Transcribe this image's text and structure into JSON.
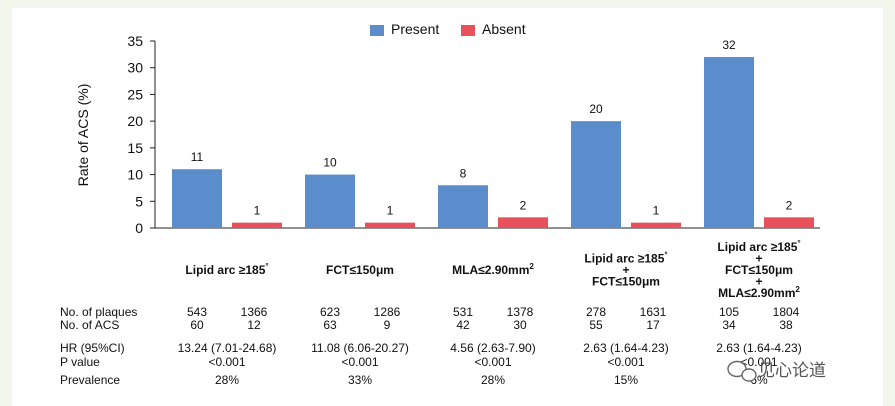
{
  "chart_data": {
    "type": "bar",
    "ylabel": "Rate of ACS (%)",
    "ylim": [
      0,
      35
    ],
    "yticks": [
      0,
      5,
      10,
      15,
      20,
      25,
      30,
      35
    ],
    "legend_position": "top-center",
    "colors": {
      "present": "#5b8ccc",
      "absent": "#e8505b"
    },
    "series": [
      {
        "name": "Present",
        "values": [
          11,
          10,
          8,
          20,
          32
        ]
      },
      {
        "name": "Absent",
        "values": [
          1,
          1,
          2,
          1,
          2
        ]
      }
    ],
    "categories": [
      {
        "lines": [
          {
            "t": "Lipid arc ≥185",
            "sup": "°"
          }
        ]
      },
      {
        "lines": [
          {
            "t": "FCT≤150μm",
            "sup": ""
          }
        ]
      },
      {
        "lines": [
          {
            "t": "MLA≤2.90mm",
            "sup": "2"
          }
        ]
      },
      {
        "lines": [
          {
            "t": "Lipid arc ≥185",
            "sup": "°"
          },
          {
            "t": "+",
            "sup": ""
          },
          {
            "t": "FCT≤150μm",
            "sup": ""
          }
        ]
      },
      {
        "lines": [
          {
            "t": "Lipid arc ≥185",
            "sup": "°"
          },
          {
            "t": "+",
            "sup": ""
          },
          {
            "t": "FCT≤150μm",
            "sup": ""
          },
          {
            "t": "+",
            "sup": ""
          },
          {
            "t": "MLA≤2.90mm",
            "sup": "2"
          }
        ]
      }
    ]
  },
  "table": {
    "rows": [
      {
        "label": "No. of plaques",
        "pairs": [
          [
            "543",
            "1366"
          ],
          [
            "623",
            "1286"
          ],
          [
            "531",
            "1378"
          ],
          [
            "278",
            "1631"
          ],
          [
            "105",
            "1804"
          ]
        ]
      },
      {
        "label": "No. of ACS",
        "pairs": [
          [
            "60",
            "12"
          ],
          [
            "63",
            "9"
          ],
          [
            "42",
            "30"
          ],
          [
            "55",
            "17"
          ],
          [
            "34",
            "38"
          ]
        ]
      },
      {
        "label": "HR (95%CI)",
        "singles": [
          "13.24 (7.01-24.68)",
          "11.08 (6.06-20.27)",
          "4.56 (2.63-7.90)",
          "2.63 (1.64-4.23)",
          "2.63 (1.64-4.23)"
        ]
      },
      {
        "label": "P value",
        "singles": [
          "<0.001",
          "<0.001",
          "<0.001",
          "<0.001",
          "<0.001"
        ]
      },
      {
        "label": "Prevalence",
        "singles": [
          "28%",
          "33%",
          "28%",
          "15%",
          "6%"
        ]
      }
    ]
  },
  "watermark": {
    "icon": "wechat-icon",
    "text": "见心论道"
  }
}
